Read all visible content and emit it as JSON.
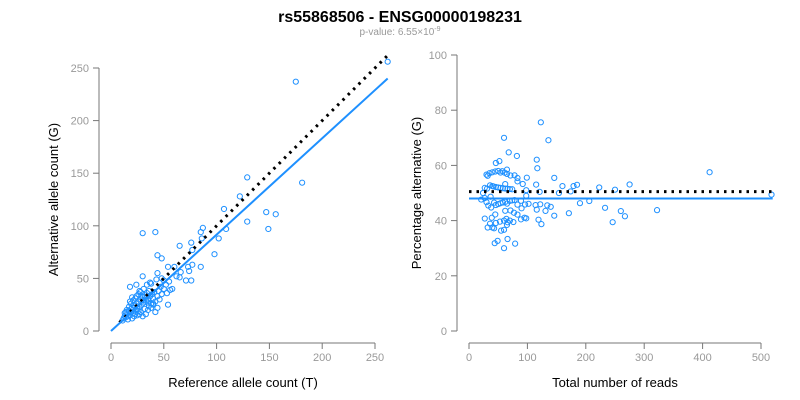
{
  "title": "rs55868506 - ENSG00000198231",
  "subtitle": {
    "prefix": "p-value: 6.55×10",
    "exponent": "-9"
  },
  "colors": {
    "points": "#1e90ff",
    "fit": "#1e90ff",
    "reference": "#000000",
    "axis": "#777777",
    "tick_label": "#999999"
  },
  "chart_data": [
    {
      "type": "scatter",
      "id": "left",
      "xlabel": "Reference allele count (T)",
      "ylabel": "Alternative allele count (G)",
      "xlim": [
        0,
        250
      ],
      "ylim": [
        0,
        250
      ],
      "xticks": [
        "0",
        "50",
        "100",
        "150",
        "200",
        "250"
      ],
      "yticks": [
        "0",
        "50",
        "100",
        "150",
        "200",
        "250"
      ],
      "fit_line": {
        "slope": 0.916,
        "intercept": 0,
        "x_range": [
          0,
          262
        ]
      },
      "reference_line": {
        "slope": 1,
        "intercept": 0,
        "x_range": [
          8,
          262
        ],
        "style": "dotted"
      }
    },
    {
      "type": "scatter",
      "id": "right",
      "xlabel": "Total number of reads",
      "ylabel": "Percentage alternative (G)",
      "xlim": [
        0,
        500
      ],
      "ylim": [
        0,
        100
      ],
      "xticks": [
        "0",
        "100",
        "200",
        "300",
        "400",
        "500"
      ],
      "yticks": [
        "0",
        "20",
        "40",
        "60",
        "80",
        "100"
      ],
      "fit_line": {
        "y": 48,
        "x_range": [
          0,
          520
        ]
      },
      "reference_line": {
        "y": 50.5,
        "x_range": [
          0,
          520
        ],
        "style": "dotted"
      }
    }
  ],
  "points_ref_alt": [
    [
      262,
      256
    ],
    [
      175,
      237
    ],
    [
      181,
      141
    ],
    [
      129,
      146
    ],
    [
      122,
      128
    ],
    [
      107,
      116
    ],
    [
      147,
      113
    ],
    [
      156,
      111
    ],
    [
      149,
      97
    ],
    [
      129,
      104
    ],
    [
      109,
      97
    ],
    [
      102,
      88
    ],
    [
      98,
      73
    ],
    [
      87,
      98
    ],
    [
      85,
      94
    ],
    [
      86,
      88
    ],
    [
      85,
      61
    ],
    [
      42,
      94
    ],
    [
      30,
      93
    ],
    [
      65,
      81
    ],
    [
      76,
      84
    ],
    [
      77,
      77
    ],
    [
      77,
      63
    ],
    [
      73,
      61
    ],
    [
      74,
      57
    ],
    [
      71,
      48
    ],
    [
      76,
      48
    ],
    [
      44,
      72
    ],
    [
      48,
      69
    ],
    [
      60,
      61
    ],
    [
      54,
      61
    ],
    [
      66,
      56
    ],
    [
      65,
      51
    ],
    [
      44,
      55
    ],
    [
      30,
      52
    ],
    [
      24,
      44
    ],
    [
      18,
      42
    ],
    [
      56,
      39
    ],
    [
      53,
      36
    ],
    [
      54,
      25
    ],
    [
      44,
      22
    ],
    [
      42,
      18
    ],
    [
      50,
      40
    ],
    [
      12,
      12
    ],
    [
      14,
      13
    ],
    [
      15,
      16
    ],
    [
      16,
      14
    ],
    [
      18,
      15
    ],
    [
      13,
      17
    ],
    [
      17,
      19
    ],
    [
      19,
      18
    ],
    [
      20,
      22
    ],
    [
      21,
      17
    ],
    [
      22,
      24
    ],
    [
      23,
      20
    ],
    [
      24,
      26
    ],
    [
      25,
      21
    ],
    [
      26,
      28
    ],
    [
      27,
      23
    ],
    [
      28,
      30
    ],
    [
      29,
      25
    ],
    [
      30,
      32
    ],
    [
      31,
      27
    ],
    [
      32,
      34
    ],
    [
      33,
      29
    ],
    [
      34,
      36
    ],
    [
      35,
      30
    ],
    [
      36,
      38
    ],
    [
      37,
      33
    ],
    [
      38,
      26
    ],
    [
      39,
      35
    ],
    [
      40,
      31
    ],
    [
      41,
      37
    ],
    [
      20,
      12
    ],
    [
      22,
      14
    ],
    [
      25,
      15
    ],
    [
      28,
      18
    ],
    [
      30,
      14
    ],
    [
      33,
      16
    ],
    [
      35,
      20
    ],
    [
      38,
      22
    ],
    [
      40,
      25
    ],
    [
      42,
      28
    ],
    [
      44,
      33
    ],
    [
      46,
      30
    ],
    [
      48,
      35
    ],
    [
      15,
      20
    ],
    [
      17,
      23
    ],
    [
      19,
      26
    ],
    [
      21,
      29
    ],
    [
      23,
      31
    ],
    [
      26,
      35
    ],
    [
      28,
      37
    ],
    [
      18,
      28
    ],
    [
      20,
      32
    ],
    [
      24,
      33
    ],
    [
      27,
      38
    ],
    [
      31,
      40
    ],
    [
      34,
      44
    ],
    [
      37,
      46
    ],
    [
      16,
      11
    ],
    [
      11,
      10
    ],
    [
      13,
      14
    ],
    [
      27,
      16
    ],
    [
      32,
      21
    ],
    [
      36,
      24
    ],
    [
      45,
      38
    ],
    [
      50,
      48
    ],
    [
      52,
      44
    ],
    [
      48,
      50
    ],
    [
      43,
      49
    ],
    [
      38,
      45
    ],
    [
      47,
      42
    ],
    [
      55,
      47
    ],
    [
      58,
      40
    ],
    [
      62,
      52
    ],
    [
      40,
      26
    ],
    [
      14,
      18
    ],
    [
      26,
      19
    ],
    [
      29,
      33
    ],
    [
      35,
      27
    ],
    [
      19,
      21
    ],
    [
      23,
      16
    ]
  ]
}
